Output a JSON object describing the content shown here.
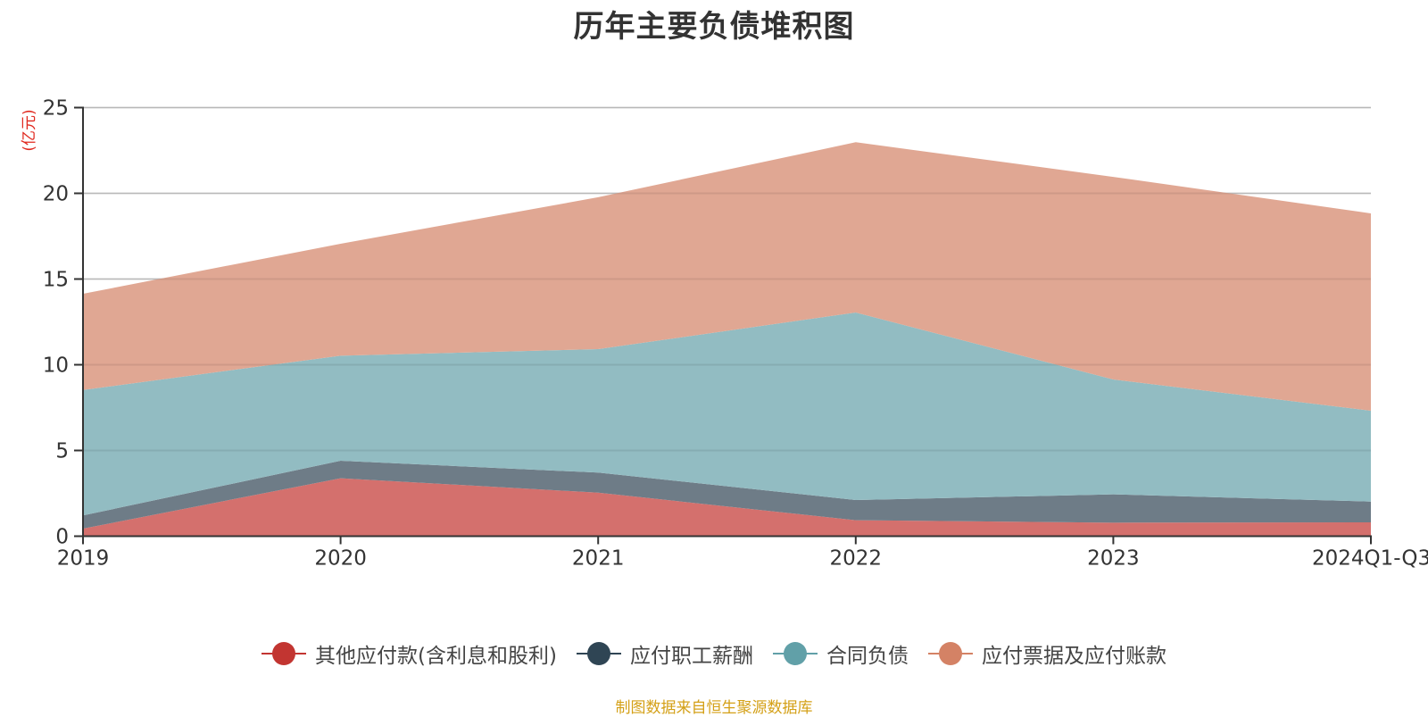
{
  "chart_data": {
    "type": "area",
    "stacked": true,
    "title": "历年主要负债堆积图",
    "ylabel": "(亿元)",
    "xlabel": "",
    "categories": [
      "2019",
      "2020",
      "2021",
      "2022",
      "2023",
      "2024Q1-Q3"
    ],
    "ylim": [
      0,
      25
    ],
    "yticks": [
      0,
      5,
      10,
      15,
      20,
      25
    ],
    "grid": true,
    "legend_position": "bottom",
    "series": [
      {
        "name": "其他应付款(含利息和股利)",
        "color": "#c23531",
        "fill": "#d4706d",
        "values": [
          0.44,
          3.38,
          2.54,
          0.93,
          0.79,
          0.81
        ]
      },
      {
        "name": "应付职工薪酬",
        "color": "#2f4554",
        "fill": "#6e7c87",
        "values": [
          0.77,
          1.02,
          1.17,
          1.18,
          1.65,
          1.21
        ]
      },
      {
        "name": "合同负债",
        "color": "#61a0a8",
        "fill": "#92bcc2",
        "values": [
          7.32,
          6.13,
          7.2,
          10.94,
          6.7,
          5.3
        ]
      },
      {
        "name": "应付票据及应付账款",
        "color": "#d48265",
        "fill": "#e0a793",
        "values": [
          5.61,
          6.53,
          8.86,
          9.93,
          11.82,
          11.51
        ]
      }
    ]
  },
  "source_text": "制图数据来自恒生聚源数据库"
}
